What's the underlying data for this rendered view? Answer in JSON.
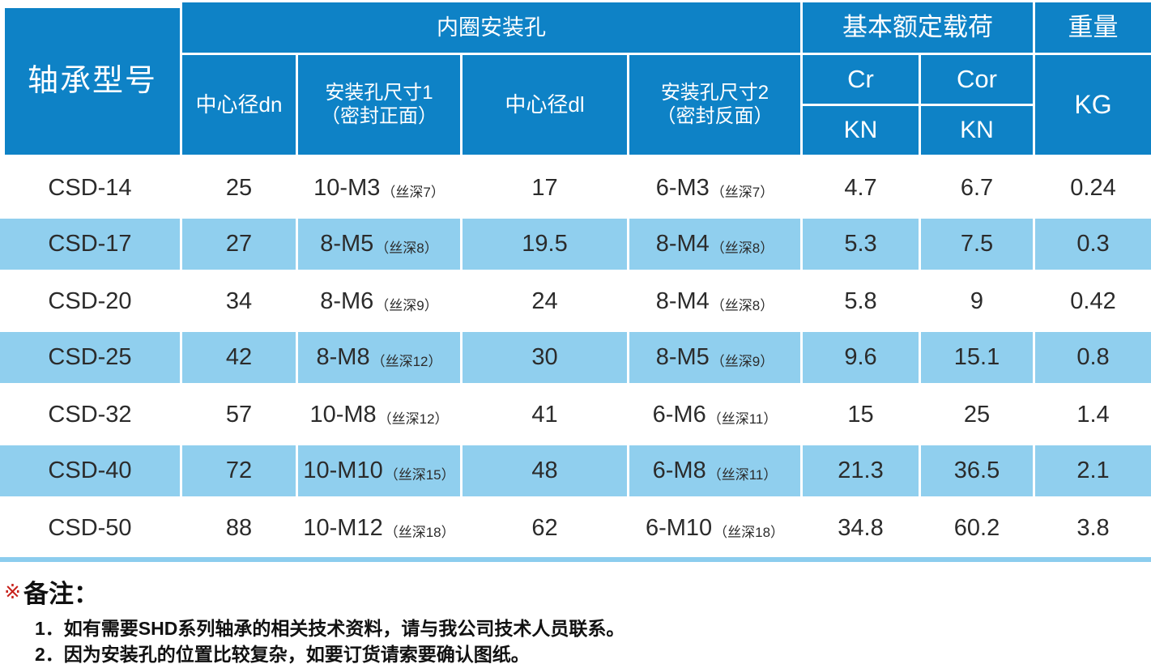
{
  "table": {
    "header": {
      "model": "轴承型号",
      "group_inner_holes": "内圈安装孔",
      "center_dn": "中心径dn",
      "hole_size1_line1": "安装孔尺寸1",
      "hole_size1_line2": "（密封正面）",
      "center_dl": "中心径dl",
      "hole_size2_line1": "安装孔尺寸2",
      "hole_size2_line2": "（密封反面）",
      "group_load": "基本额定载荷",
      "cr": "Cr",
      "cor": "Cor",
      "kn1": "KN",
      "kn2": "KN",
      "group_weight": "重量",
      "kg": "KG"
    },
    "rows": [
      {
        "model": "CSD-14",
        "dn": "25",
        "hole1": "10-M3",
        "hole1_note": "（丝深7）",
        "dl": "17",
        "hole2": "6-M3",
        "hole2_note": "（丝深7）",
        "cr": "4.7",
        "cor": "6.7",
        "kg": "0.24"
      },
      {
        "model": "CSD-17",
        "dn": "27",
        "hole1": "8-M5",
        "hole1_note": "（丝深8）",
        "dl": "19.5",
        "hole2": "8-M4",
        "hole2_note": "（丝深8）",
        "cr": "5.3",
        "cor": "7.5",
        "kg": "0.3"
      },
      {
        "model": "CSD-20",
        "dn": "34",
        "hole1": "8-M6",
        "hole1_note": "（丝深9）",
        "dl": "24",
        "hole2": "8-M4",
        "hole2_note": "（丝深8）",
        "cr": "5.8",
        "cor": "9",
        "kg": "0.42"
      },
      {
        "model": "CSD-25",
        "dn": "42",
        "hole1": "8-M8",
        "hole1_note": "（丝深12）",
        "dl": "30",
        "hole2": "8-M5",
        "hole2_note": "（丝深9）",
        "cr": "9.6",
        "cor": "15.1",
        "kg": "0.8"
      },
      {
        "model": "CSD-32",
        "dn": "57",
        "hole1": "10-M8",
        "hole1_note": "（丝深12）",
        "dl": "41",
        "hole2": "6-M6",
        "hole2_note": "（丝深11）",
        "cr": "15",
        "cor": "25",
        "kg": "1.4"
      },
      {
        "model": "CSD-40",
        "dn": "72",
        "hole1": "10-M10",
        "hole1_note": "（丝深15）",
        "dl": "48",
        "hole2": "6-M8",
        "hole2_note": "（丝深11）",
        "cr": "21.3",
        "cor": "36.5",
        "kg": "2.1"
      },
      {
        "model": "CSD-50",
        "dn": "88",
        "hole1": "10-M12",
        "hole1_note": "（丝深18）",
        "dl": "62",
        "hole2": "6-M10",
        "hole2_note": "（丝深18）",
        "cr": "34.8",
        "cor": "60.2",
        "kg": "3.8"
      }
    ]
  },
  "notes": {
    "marker": "※",
    "title": "备注：",
    "items": [
      "1．如有需要SHD系列轴承的相关技术资料，请与我公司技术人员联系。",
      "2．因为安装孔的位置比较复杂，如要订货请索要确认图纸。"
    ]
  },
  "colors": {
    "header_blue": "#0e82c6",
    "row_light_blue": "#90cfee",
    "bottom_rule_blue": "#8ccdee",
    "note_marker_red": "#c8231d",
    "data_text": "#2b2b2b"
  }
}
